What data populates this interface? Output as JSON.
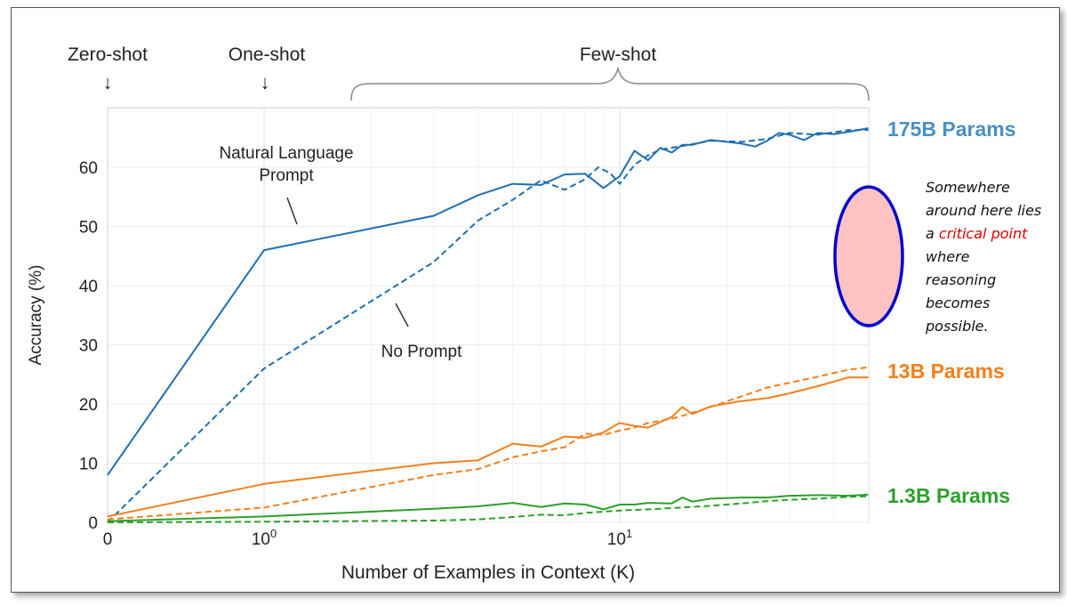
{
  "headers": {
    "zero_shot": "Zero-shot",
    "one_shot": "One-shot",
    "few_shot": "Few-shot"
  },
  "annotations": {
    "nl_prompt_line1": "Natural Language",
    "nl_prompt_line2": "Prompt",
    "no_prompt": "No Prompt"
  },
  "param_labels": {
    "p175b": "175B Params",
    "p13b": "13B Params",
    "p13": "1.3B Params"
  },
  "callout": {
    "line1": "Somewhere",
    "line2": "around here lies",
    "line3_pre": "a ",
    "line3_highlight": "critical point",
    "line4": "where",
    "line5": "reasoning",
    "line6": "becomes",
    "line7": "possible.",
    "highlight_color": "#e00000",
    "ellipse_fill": "#ffc2c2",
    "ellipse_stroke": "#0000cc"
  },
  "chart_data": {
    "type": "line",
    "xlabel": "Number of Examples in Context  (K)",
    "ylabel": "Accuracy (%)",
    "xscale": "log (with 0 shown at origin)",
    "xticks": [
      {
        "value": 0,
        "label": "0"
      },
      {
        "value": 1,
        "label": "10",
        "sup": "0"
      },
      {
        "value": 10,
        "label": "10",
        "sup": "1"
      }
    ],
    "yticks": [
      0,
      10,
      20,
      30,
      40,
      50,
      60
    ],
    "ylim": [
      0,
      70
    ],
    "xlim": [
      0,
      50
    ],
    "grid": true,
    "colors": {
      "175B": "#1f6fb0",
      "13B": "#f47f1a",
      "1.3B": "#2ca02c"
    },
    "series": [
      {
        "name": "175B Params",
        "model": "175B",
        "style": "solid",
        "points": [
          [
            0,
            8
          ],
          [
            1,
            46
          ],
          [
            3,
            51.8
          ],
          [
            4,
            55.3
          ],
          [
            5,
            57.2
          ],
          [
            6,
            57.0
          ],
          [
            7,
            58.8
          ],
          [
            8,
            58.9
          ],
          [
            9,
            56.5
          ],
          [
            10,
            58.5
          ],
          [
            11,
            62.8
          ],
          [
            12,
            61.2
          ],
          [
            13,
            63.3
          ],
          [
            14,
            62.5
          ],
          [
            15,
            63.8
          ],
          [
            16,
            63.8
          ],
          [
            18,
            64.6
          ],
          [
            20,
            64.3
          ],
          [
            22,
            64.0
          ],
          [
            24,
            63.5
          ],
          [
            26,
            64.5
          ],
          [
            28,
            65.8
          ],
          [
            30,
            65.5
          ],
          [
            33,
            64.6
          ],
          [
            36,
            65.8
          ],
          [
            40,
            65.6
          ],
          [
            44,
            66.0
          ],
          [
            50,
            66.6
          ]
        ]
      },
      {
        "name": "175B Params",
        "model": "175B",
        "style": "dashed",
        "points": [
          [
            0,
            0
          ],
          [
            1,
            26
          ],
          [
            3,
            44
          ],
          [
            4,
            51
          ],
          [
            5,
            54.5
          ],
          [
            6,
            57.8
          ],
          [
            7,
            56.2
          ],
          [
            8,
            58
          ],
          [
            8.7,
            60
          ],
          [
            9.4,
            59
          ],
          [
            10,
            57.2
          ],
          [
            11,
            60.4
          ],
          [
            12,
            62
          ],
          [
            13,
            63
          ],
          [
            15,
            63.6
          ],
          [
            18,
            64.5
          ],
          [
            22,
            64.3
          ],
          [
            26,
            64.8
          ],
          [
            30,
            65.8
          ],
          [
            36,
            65.5
          ],
          [
            44,
            66.3
          ],
          [
            50,
            66.3
          ]
        ]
      },
      {
        "name": "13B Params",
        "model": "13B",
        "style": "solid",
        "points": [
          [
            0,
            1
          ],
          [
            1,
            6.5
          ],
          [
            3,
            10
          ],
          [
            4,
            10.5
          ],
          [
            5,
            13.3
          ],
          [
            6,
            12.8
          ],
          [
            7,
            14.5
          ],
          [
            8,
            14.3
          ],
          [
            9,
            15.2
          ],
          [
            10,
            16.8
          ],
          [
            11,
            16.3
          ],
          [
            12,
            16
          ],
          [
            14,
            17.8
          ],
          [
            15,
            19.5
          ],
          [
            16,
            18.3
          ],
          [
            18,
            19.6
          ],
          [
            22,
            20.5
          ],
          [
            26,
            21
          ],
          [
            30,
            21.8
          ],
          [
            36,
            23
          ],
          [
            44,
            24.5
          ],
          [
            50,
            24.5
          ]
        ]
      },
      {
        "name": "13B Params",
        "model": "13B",
        "style": "dashed",
        "points": [
          [
            0,
            0.5
          ],
          [
            1,
            2.5
          ],
          [
            3,
            8
          ],
          [
            4,
            9
          ],
          [
            5,
            11
          ],
          [
            6,
            12
          ],
          [
            7,
            12.7
          ],
          [
            8,
            15
          ],
          [
            9,
            14.8
          ],
          [
            10,
            15.5
          ],
          [
            11,
            16
          ],
          [
            12,
            16.8
          ],
          [
            14,
            17.5
          ],
          [
            16,
            18.5
          ],
          [
            18,
            19.5
          ],
          [
            22,
            21.3
          ],
          [
            26,
            22.8
          ],
          [
            30,
            23.6
          ],
          [
            36,
            24.6
          ],
          [
            44,
            25.8
          ],
          [
            50,
            26.2
          ]
        ]
      },
      {
        "name": "1.3B Params",
        "model": "1.3B",
        "style": "solid",
        "points": [
          [
            0,
            0.2
          ],
          [
            1,
            1
          ],
          [
            3,
            2.3
          ],
          [
            4,
            2.7
          ],
          [
            5,
            3.3
          ],
          [
            6,
            2.6
          ],
          [
            7,
            3.2
          ],
          [
            8,
            3
          ],
          [
            9,
            2.2
          ],
          [
            10,
            3
          ],
          [
            11,
            3
          ],
          [
            12,
            3.3
          ],
          [
            14,
            3.2
          ],
          [
            15,
            4.2
          ],
          [
            16,
            3.5
          ],
          [
            18,
            4
          ],
          [
            22,
            4.2
          ],
          [
            26,
            4.2
          ],
          [
            30,
            4.5
          ],
          [
            36,
            4.6
          ],
          [
            44,
            4.5
          ],
          [
            50,
            4.7
          ]
        ]
      },
      {
        "name": "1.3B Params",
        "model": "1.3B",
        "style": "dashed",
        "points": [
          [
            0,
            0
          ],
          [
            1,
            0.1
          ],
          [
            3,
            0.3
          ],
          [
            4,
            0.5
          ],
          [
            5,
            0.9
          ],
          [
            6,
            1.3
          ],
          [
            7,
            1.2
          ],
          [
            8,
            1.6
          ],
          [
            9,
            1.8
          ],
          [
            10,
            2
          ],
          [
            12,
            2.2
          ],
          [
            14,
            2.4
          ],
          [
            18,
            2.8
          ],
          [
            22,
            3.2
          ],
          [
            26,
            3.6
          ],
          [
            30,
            3.8
          ],
          [
            36,
            4
          ],
          [
            44,
            4.3
          ],
          [
            50,
            4.4
          ]
        ]
      }
    ]
  }
}
